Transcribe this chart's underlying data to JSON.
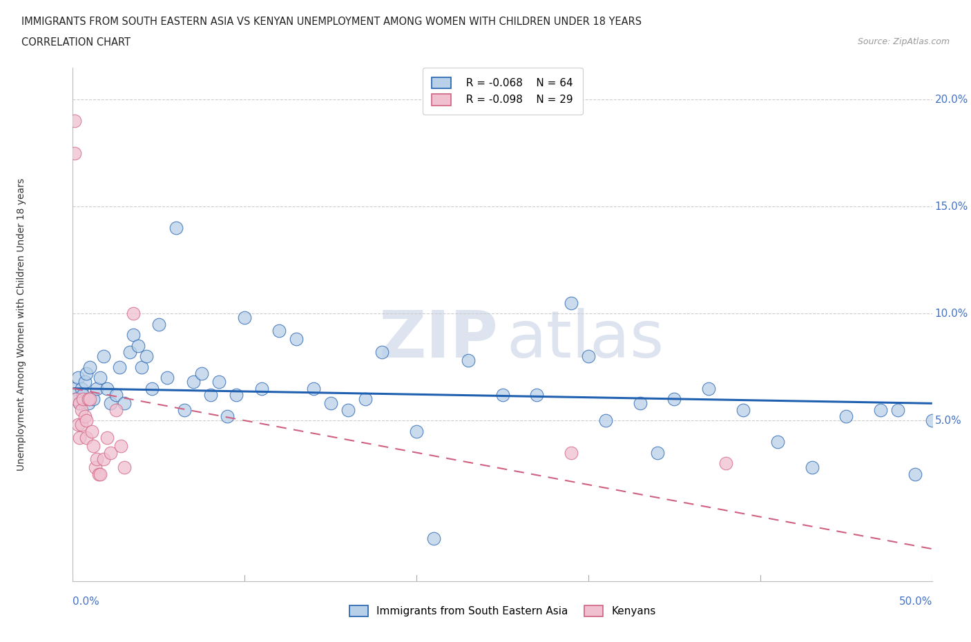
{
  "title_line1": "IMMIGRANTS FROM SOUTH EASTERN ASIA VS KENYAN UNEMPLOYMENT AMONG WOMEN WITH CHILDREN UNDER 18 YEARS",
  "title_line2": "CORRELATION CHART",
  "source": "Source: ZipAtlas.com",
  "ylabel": "Unemployment Among Women with Children Under 18 years",
  "xlim": [
    0.0,
    0.5
  ],
  "ylim": [
    -0.025,
    0.215
  ],
  "yticks": [
    0.05,
    0.1,
    0.15,
    0.2
  ],
  "ytick_labels": [
    "5.0%",
    "10.0%",
    "15.0%",
    "20.0%"
  ],
  "legend_blue_r": "R = -0.068",
  "legend_blue_n": "N = 64",
  "legend_pink_r": "R = -0.098",
  "legend_pink_n": "N = 29",
  "series1_label": "Immigrants from South Eastern Asia",
  "series2_label": "Kenyans",
  "color_blue": "#b8d0e8",
  "color_blue_line": "#2060b0",
  "color_pink": "#f0c0d0",
  "color_pink_line": "#d06080",
  "color_text_blue": "#4472c4",
  "blue_points_x": [
    0.001,
    0.002,
    0.003,
    0.004,
    0.005,
    0.006,
    0.007,
    0.008,
    0.009,
    0.01,
    0.012,
    0.014,
    0.016,
    0.018,
    0.02,
    0.022,
    0.025,
    0.027,
    0.03,
    0.033,
    0.035,
    0.038,
    0.04,
    0.043,
    0.046,
    0.05,
    0.055,
    0.06,
    0.065,
    0.07,
    0.075,
    0.08,
    0.085,
    0.09,
    0.095,
    0.1,
    0.11,
    0.12,
    0.13,
    0.14,
    0.15,
    0.16,
    0.17,
    0.18,
    0.2,
    0.21,
    0.23,
    0.25,
    0.27,
    0.29,
    0.31,
    0.33,
    0.35,
    0.37,
    0.39,
    0.41,
    0.43,
    0.45,
    0.47,
    0.49,
    0.3,
    0.34,
    0.5,
    0.48
  ],
  "blue_points_y": [
    0.065,
    0.06,
    0.07,
    0.058,
    0.065,
    0.062,
    0.068,
    0.072,
    0.058,
    0.075,
    0.06,
    0.065,
    0.07,
    0.08,
    0.065,
    0.058,
    0.062,
    0.075,
    0.058,
    0.082,
    0.09,
    0.085,
    0.075,
    0.08,
    0.065,
    0.095,
    0.07,
    0.14,
    0.055,
    0.068,
    0.072,
    0.062,
    0.068,
    0.052,
    0.062,
    0.098,
    0.065,
    0.092,
    0.088,
    0.065,
    0.058,
    0.055,
    0.06,
    0.082,
    0.045,
    -0.005,
    0.078,
    0.062,
    0.062,
    0.105,
    0.05,
    0.058,
    0.06,
    0.065,
    0.055,
    0.04,
    0.028,
    0.052,
    0.055,
    0.025,
    0.08,
    0.035,
    0.05,
    0.055
  ],
  "pink_points_x": [
    0.001,
    0.001,
    0.002,
    0.003,
    0.004,
    0.004,
    0.005,
    0.005,
    0.006,
    0.007,
    0.008,
    0.008,
    0.009,
    0.01,
    0.011,
    0.012,
    0.013,
    0.014,
    0.015,
    0.016,
    0.018,
    0.02,
    0.022,
    0.025,
    0.028,
    0.03,
    0.035,
    0.29,
    0.38
  ],
  "pink_points_y": [
    0.19,
    0.175,
    0.06,
    0.048,
    0.042,
    0.058,
    0.055,
    0.048,
    0.06,
    0.052,
    0.042,
    0.05,
    0.06,
    0.06,
    0.045,
    0.038,
    0.028,
    0.032,
    0.025,
    0.025,
    0.032,
    0.042,
    0.035,
    0.055,
    0.038,
    0.028,
    0.1,
    0.035,
    0.03
  ],
  "blue_trendline_x": [
    0.0,
    0.5
  ],
  "blue_trendline_y": [
    0.065,
    0.058
  ],
  "pink_trendline_x": [
    0.0,
    0.5
  ],
  "pink_trendline_y": [
    0.065,
    -0.01
  ]
}
